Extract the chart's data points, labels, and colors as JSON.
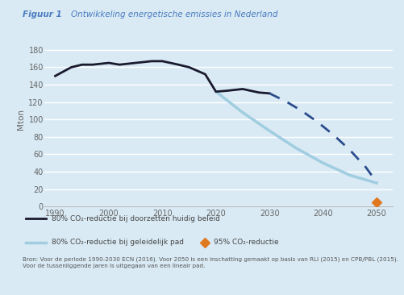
{
  "title_bold": "Figuur 1",
  "title_rest": "   Ontwikkeling energetische emissies in Nederland",
  "bg_color": "#d9eaf4",
  "ylabel": "Mton",
  "ylim": [
    0,
    200
  ],
  "yticks": [
    0,
    20,
    40,
    60,
    80,
    100,
    120,
    140,
    160,
    180
  ],
  "xlim": [
    1988,
    2053
  ],
  "xticks": [
    1990,
    2000,
    2010,
    2020,
    2030,
    2040,
    2050
  ],
  "line1_color": "#1a1a2e",
  "line1_x": [
    1990,
    1993,
    1995,
    1997,
    2000,
    2002,
    2005,
    2008,
    2010,
    2013,
    2015,
    2018,
    2020,
    2022,
    2025,
    2028,
    2030
  ],
  "line1_y": [
    150,
    160,
    163,
    163,
    165,
    163,
    165,
    167,
    167,
    163,
    160,
    152,
    132,
    133,
    135,
    131,
    130
  ],
  "line1b_color": "#2b4c8c",
  "line1b_x": [
    2030,
    2033,
    2036,
    2039,
    2042,
    2045,
    2048,
    2050
  ],
  "line1b_y": [
    130,
    121,
    110,
    97,
    82,
    65,
    45,
    28
  ],
  "line2_color": "#a0cde0",
  "line2_x": [
    2020,
    2025,
    2030,
    2035,
    2040,
    2045,
    2050
  ],
  "line2_y": [
    132,
    108,
    87,
    67,
    50,
    36,
    27
  ],
  "point_color": "#e07820",
  "point_x": 2050,
  "point_y": 5,
  "legend_line1": "80% CO₂-reductie bij doorzetten huidig beleid",
  "legend_line2": "80% CO₂-reductie bij geleidelijk pad",
  "legend_point": "95% CO₂-reductie",
  "source_text": "Bron: Voor de periode 1990-2030 ECN (2016). Voor 2050 is een inschatting gemaakt op basis van RLI (2015) en CPB/PBL (2015).\nVoor de tussenliggende jaren is uitgegaan van een lineair pad."
}
